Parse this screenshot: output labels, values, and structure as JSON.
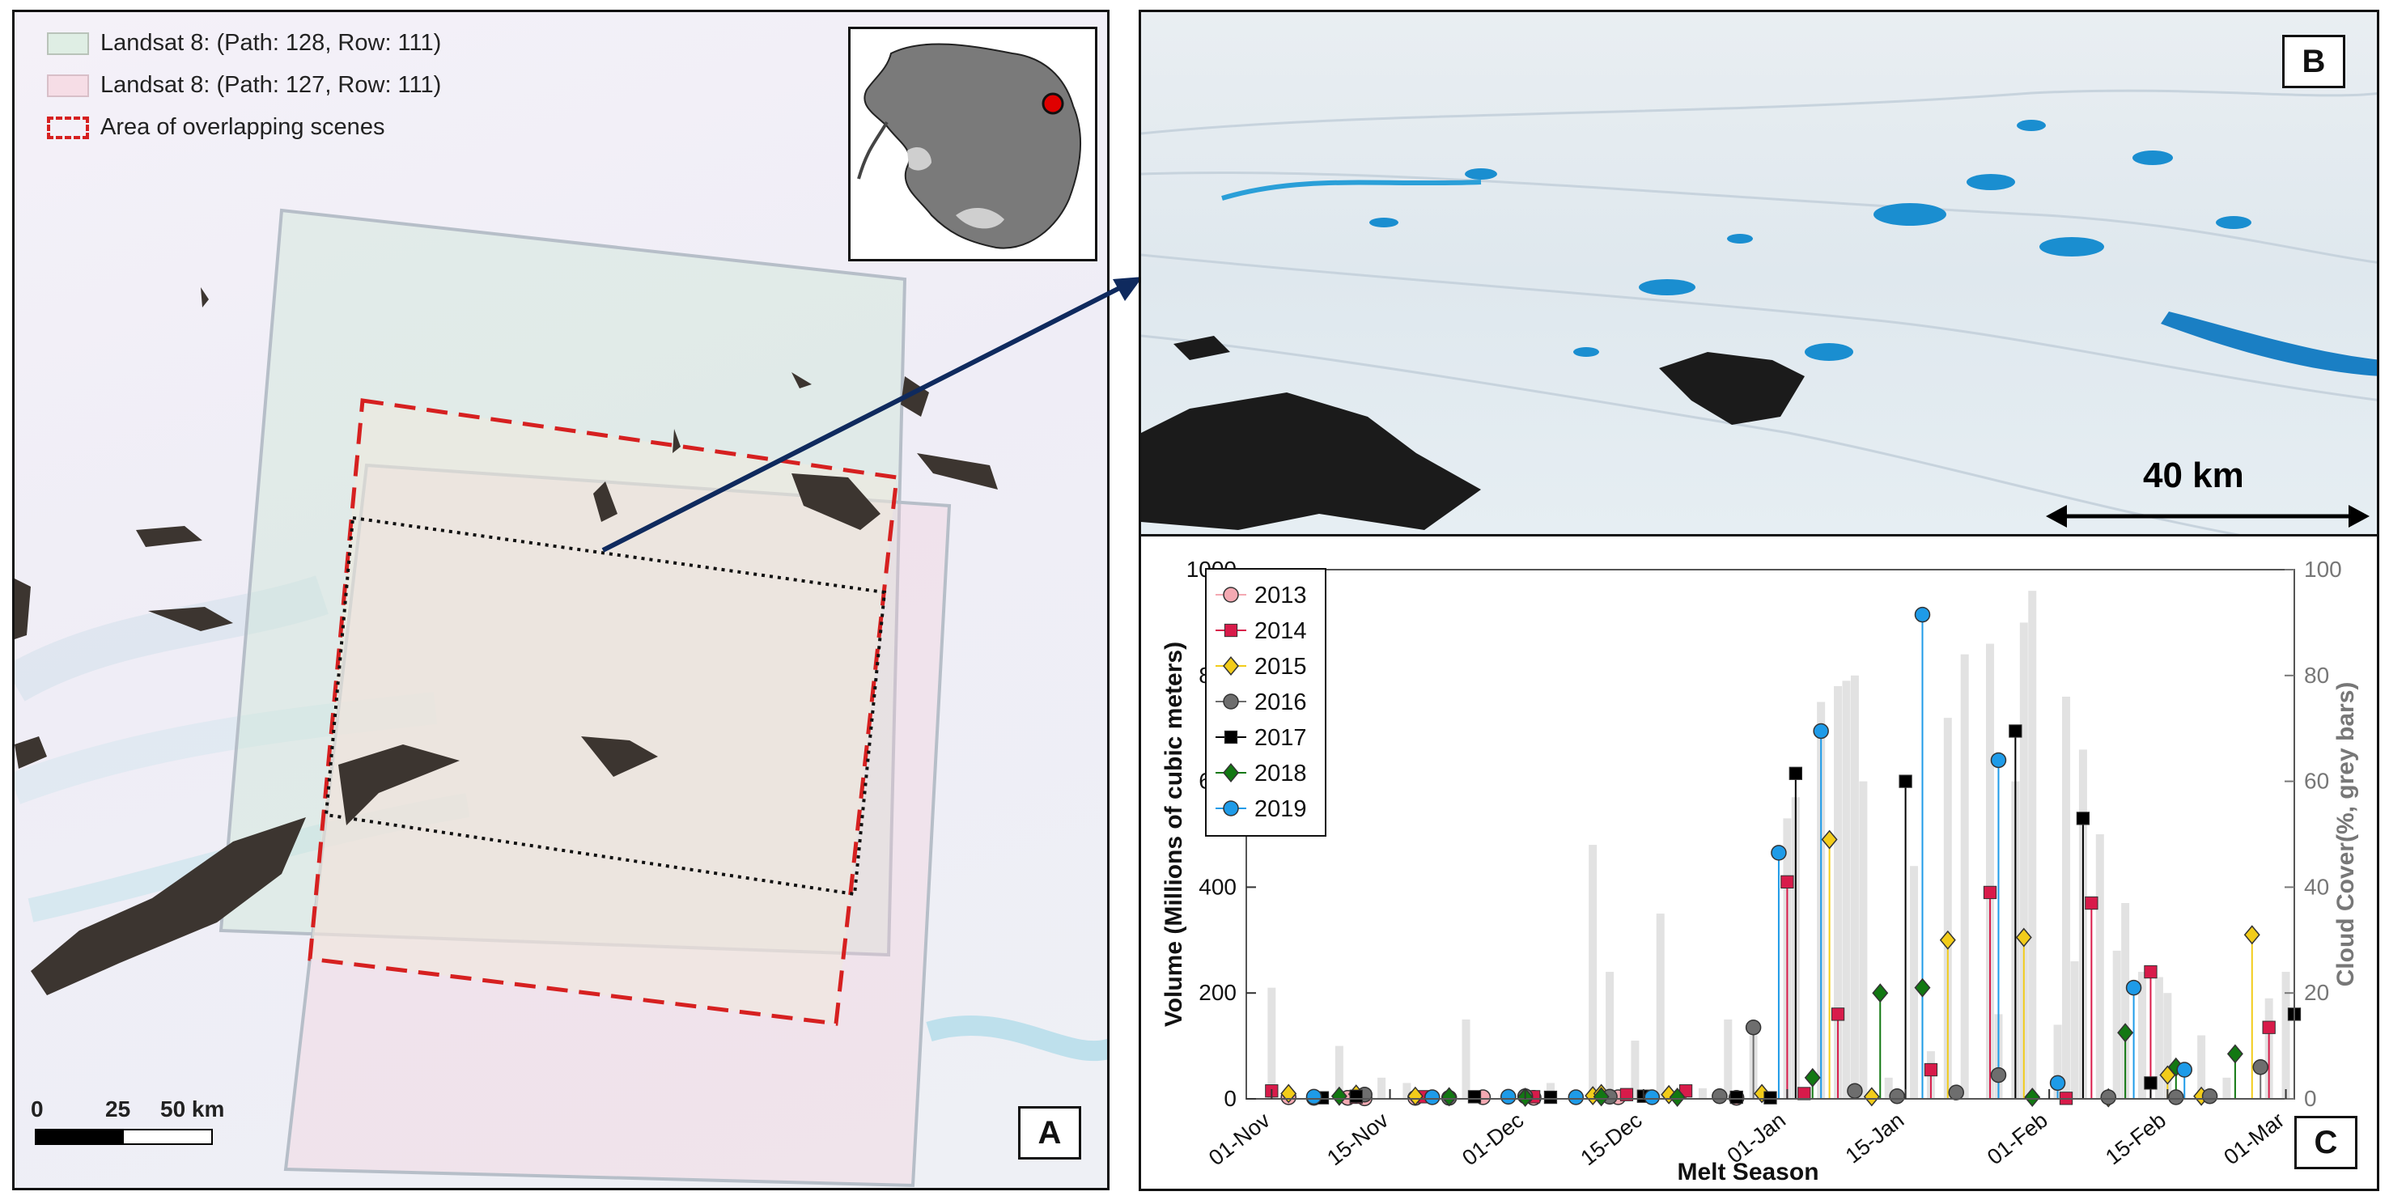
{
  "panel_a": {
    "letter": "A",
    "legend": [
      {
        "label": "Landsat 8: (Path: 128, Row: 111)",
        "color": "#dfeee4"
      },
      {
        "label": "Landsat 8: (Path: 127, Row: 111)",
        "color": "#f6dde6"
      },
      {
        "label": "Area of overlapping scenes",
        "color": "#d62020"
      }
    ],
    "scalebar": {
      "ticks": [
        "0",
        "25",
        "50 km"
      ]
    }
  },
  "panel_b": {
    "letter": "B",
    "scale_label": "40 km"
  },
  "panel_c": {
    "letter": "C"
  },
  "chart_data": {
    "type": "scatter",
    "title": "",
    "xlabel": "Melt Season",
    "ylabel": "Volume (Millions of cubic meters)",
    "y2label": "Cloud Cover(%, grey bars)",
    "ylim": [
      0,
      1000
    ],
    "y2lim": [
      0,
      100
    ],
    "yticks": [
      0,
      200,
      400,
      600,
      800,
      1000
    ],
    "y2ticks": [
      0,
      20,
      40,
      60,
      80,
      100
    ],
    "xlim_days": [
      -3,
      121
    ],
    "xticks": [
      {
        "label": "01-Nov",
        "day": 0
      },
      {
        "label": "15-Nov",
        "day": 14
      },
      {
        "label": "01-Dec",
        "day": 30
      },
      {
        "label": "15-Dec",
        "day": 44
      },
      {
        "label": "01-Jan",
        "day": 61
      },
      {
        "label": "15-Jan",
        "day": 75
      },
      {
        "label": "01-Feb",
        "day": 92
      },
      {
        "label": "15-Feb",
        "day": 106
      },
      {
        "label": "01-Mar",
        "day": 120
      }
    ],
    "legend_position": "upper-left",
    "series": [
      {
        "name": "2013",
        "color": "#f4a9b2",
        "marker": "circle",
        "points": [
          [
            2,
            3
          ],
          [
            9,
            2
          ],
          [
            11,
            1
          ],
          [
            17,
            2
          ],
          [
            25,
            3
          ],
          [
            31,
            2
          ],
          [
            41,
            3
          ],
          [
            55,
            2
          ]
        ]
      },
      {
        "name": "2014",
        "color": "#d81b4a",
        "marker": "square",
        "points": [
          [
            0,
            15
          ],
          [
            10,
            3
          ],
          [
            18,
            4
          ],
          [
            31,
            4
          ],
          [
            42,
            8
          ],
          [
            49,
            15
          ],
          [
            61,
            410
          ],
          [
            63,
            10
          ],
          [
            67,
            160
          ],
          [
            78,
            55
          ],
          [
            85,
            390
          ],
          [
            94,
            1
          ],
          [
            97,
            370
          ],
          [
            104,
            240
          ],
          [
            118,
            135
          ]
        ]
      },
      {
        "name": "2015",
        "color": "#f2cc1a",
        "marker": "diamond",
        "points": [
          [
            2,
            10
          ],
          [
            10,
            9
          ],
          [
            17,
            5
          ],
          [
            38,
            6
          ],
          [
            39,
            10
          ],
          [
            47,
            8
          ],
          [
            58,
            10
          ],
          [
            66,
            490
          ],
          [
            71,
            4
          ],
          [
            80,
            300
          ],
          [
            89,
            305
          ],
          [
            99,
            2
          ],
          [
            106,
            45
          ],
          [
            110,
            5
          ],
          [
            116,
            310
          ]
        ]
      },
      {
        "name": "2016",
        "color": "#6e6e6e",
        "marker": "circle",
        "points": [
          [
            5,
            2
          ],
          [
            11,
            8
          ],
          [
            21,
            2
          ],
          [
            30,
            5
          ],
          [
            40,
            4
          ],
          [
            53,
            5
          ],
          [
            57,
            135
          ],
          [
            69,
            15
          ],
          [
            74,
            5
          ],
          [
            81,
            12
          ],
          [
            86,
            45
          ],
          [
            99,
            3
          ],
          [
            107,
            3
          ],
          [
            111,
            5
          ],
          [
            117,
            60
          ]
        ]
      },
      {
        "name": "2017",
        "color": "#000000",
        "marker": "square",
        "points": [
          [
            6,
            2
          ],
          [
            10,
            5
          ],
          [
            24,
            4
          ],
          [
            33,
            3
          ],
          [
            44,
            5
          ],
          [
            55,
            3
          ],
          [
            59,
            2
          ],
          [
            62,
            615
          ],
          [
            75,
            600
          ],
          [
            88,
            695
          ],
          [
            96,
            530
          ],
          [
            104,
            30
          ],
          [
            121,
            160
          ]
        ]
      },
      {
        "name": "2018",
        "color": "#127812",
        "marker": "diamond",
        "points": [
          [
            8,
            5
          ],
          [
            21,
            4
          ],
          [
            30,
            3
          ],
          [
            39,
            4
          ],
          [
            48,
            3
          ],
          [
            64,
            40
          ],
          [
            72,
            200
          ],
          [
            77,
            210
          ],
          [
            90,
            3
          ],
          [
            101,
            125
          ],
          [
            107,
            60
          ],
          [
            114,
            85
          ]
        ]
      },
      {
        "name": "2019",
        "color": "#1e9be8",
        "marker": "circle",
        "points": [
          [
            5,
            4
          ],
          [
            19,
            3
          ],
          [
            28,
            4
          ],
          [
            36,
            3
          ],
          [
            45,
            3
          ],
          [
            60,
            465
          ],
          [
            65,
            695
          ],
          [
            77,
            915
          ],
          [
            86,
            640
          ],
          [
            93,
            30
          ],
          [
            102,
            210
          ],
          [
            108,
            55
          ]
        ]
      }
    ],
    "cloud_cover_bars": {
      "color": "#e2e2e2",
      "days": [
        0,
        8,
        13,
        16,
        23,
        33,
        38,
        40,
        43,
        46,
        51,
        54,
        57,
        61,
        62,
        65,
        67,
        68,
        69,
        70,
        73,
        76,
        78,
        80,
        82,
        85,
        86,
        88,
        89,
        90,
        93,
        94,
        95,
        96,
        98,
        100,
        101,
        103,
        105,
        106,
        110,
        113,
        118,
        120
      ],
      "values": [
        21,
        10,
        4,
        3,
        15,
        3,
        48,
        24,
        11,
        35,
        2,
        15,
        12,
        53,
        57,
        75,
        78,
        79,
        80,
        60,
        4,
        44,
        9,
        72,
        84,
        86,
        16,
        60,
        90,
        96,
        14,
        76,
        26,
        66,
        50,
        28,
        37,
        24,
        23,
        20,
        12,
        4,
        19,
        24
      ]
    }
  }
}
